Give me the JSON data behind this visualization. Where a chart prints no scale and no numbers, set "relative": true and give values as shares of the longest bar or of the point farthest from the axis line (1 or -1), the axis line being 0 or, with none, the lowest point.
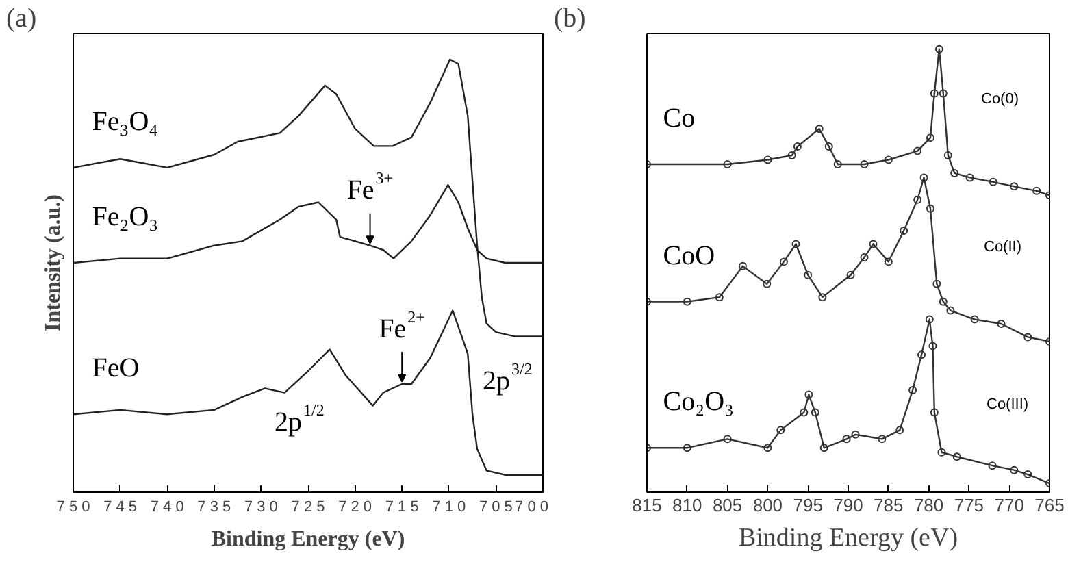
{
  "chart_data": [
    {
      "type": "line",
      "relative": true,
      "xlabel": "Binding Energy (eV)",
      "ylabel": "Intensity (a.u.)",
      "xlim": [
        750,
        700
      ],
      "xticks": [
        750,
        745,
        740,
        735,
        730,
        725,
        720,
        715,
        710,
        705,
        700
      ],
      "grid": false,
      "legend": false,
      "marker": "none",
      "line_style": "solid",
      "annotations": [
        "(a)",
        "2p$^{1/2}$",
        "2p$^{3/2}$",
        {
          "text": "Fe$^{3+}$",
          "x": 718.4,
          "y": 0.57
        },
        {
          "text": "Fe$^{2+}$",
          "x": 715,
          "y": 0.25
        }
      ],
      "series": [
        {
          "name": "Fe₃O₄",
          "color": "#222222",
          "x": [
            750,
            745,
            740,
            735,
            732.5,
            728,
            726,
            723.2,
            722,
            720,
            718,
            716,
            714,
            712,
            709.9,
            709,
            708,
            707.5,
            707,
            706.5,
            706,
            705,
            703,
            700
          ],
          "values": [
            0.75,
            0.77,
            0.75,
            0.78,
            0.81,
            0.83,
            0.87,
            0.94,
            0.92,
            0.84,
            0.8,
            0.8,
            0.82,
            0.9,
            1.0,
            0.99,
            0.87,
            0.72,
            0.57,
            0.45,
            0.39,
            0.37,
            0.36,
            0.36
          ]
        },
        {
          "name": "Fe₂O₃",
          "color": "#222222",
          "x": [
            750,
            745,
            740,
            735,
            732,
            728,
            726,
            723.9,
            722,
            721.6,
            718.4,
            717,
            715.9,
            714,
            712,
            710.1,
            709,
            708,
            707,
            706,
            704,
            700
          ],
          "values": [
            0.53,
            0.54,
            0.54,
            0.57,
            0.58,
            0.63,
            0.66,
            0.67,
            0.63,
            0.59,
            0.57,
            0.56,
            0.54,
            0.58,
            0.64,
            0.71,
            0.67,
            0.61,
            0.56,
            0.54,
            0.53,
            0.53
          ]
        },
        {
          "name": "FeO",
          "color": "#222222",
          "x": [
            750,
            745,
            740,
            735,
            732,
            729.6,
            727.5,
            725,
            722.7,
            721,
            718.1,
            717,
            715,
            714,
            712,
            709.6,
            708,
            707.5,
            707,
            706,
            704,
            700
          ],
          "values": [
            0.18,
            0.19,
            0.18,
            0.19,
            0.22,
            0.24,
            0.23,
            0.28,
            0.33,
            0.27,
            0.2,
            0.23,
            0.25,
            0.25,
            0.31,
            0.42,
            0.32,
            0.18,
            0.1,
            0.05,
            0.04,
            0.04
          ]
        }
      ]
    },
    {
      "type": "line",
      "relative": true,
      "xlabel": "Binding Energy (eV)",
      "xlim": [
        815,
        765
      ],
      "xticks": [
        815,
        810,
        805,
        800,
        795,
        790,
        785,
        780,
        775,
        770,
        765
      ],
      "grid": false,
      "legend": false,
      "marker": "circle",
      "line_style": "solid",
      "annotations": [
        "(b)",
        "Co(0)",
        "Co(II)",
        "Co(III)"
      ],
      "series": [
        {
          "name": "Co",
          "color": "#333333",
          "x": [
            815,
            805,
            800,
            797,
            796.3,
            793.6,
            792.4,
            791.3,
            788,
            785,
            781.4,
            779.8,
            779.3,
            778.7,
            778.2,
            777.6,
            776.8,
            774.9,
            772,
            769.4,
            766.6,
            765
          ],
          "values": [
            0.74,
            0.74,
            0.75,
            0.76,
            0.78,
            0.82,
            0.78,
            0.74,
            0.74,
            0.75,
            0.77,
            0.8,
            0.9,
            1.0,
            0.9,
            0.76,
            0.72,
            0.71,
            0.7,
            0.69,
            0.68,
            0.67
          ]
        },
        {
          "name": "CoO",
          "color": "#333333",
          "x": [
            815,
            810,
            806,
            803.1,
            800.1,
            798,
            796.5,
            795,
            793.2,
            789.7,
            788,
            786.9,
            785,
            783.1,
            781.4,
            780.6,
            779.8,
            779,
            778.2,
            777.3,
            774.3,
            771,
            767.7,
            765
          ],
          "values": [
            0.43,
            0.43,
            0.44,
            0.51,
            0.47,
            0.52,
            0.56,
            0.49,
            0.44,
            0.49,
            0.53,
            0.56,
            0.52,
            0.59,
            0.66,
            0.71,
            0.64,
            0.47,
            0.43,
            0.41,
            0.39,
            0.38,
            0.35,
            0.34
          ]
        },
        {
          "name": "Co₂O₃",
          "color": "#333333",
          "x": [
            815,
            810,
            805,
            800,
            798.4,
            795.5,
            794.9,
            794.1,
            793,
            790.2,
            789.1,
            785.8,
            783.6,
            782,
            780.9,
            779.9,
            779.5,
            779.3,
            778.4,
            776.5,
            772.1,
            769.4,
            767.7,
            765
          ],
          "values": [
            0.1,
            0.1,
            0.12,
            0.1,
            0.14,
            0.18,
            0.22,
            0.18,
            0.1,
            0.12,
            0.13,
            0.12,
            0.14,
            0.23,
            0.31,
            0.39,
            0.33,
            0.18,
            0.09,
            0.08,
            0.06,
            0.05,
            0.04,
            0.02
          ]
        }
      ]
    }
  ]
}
